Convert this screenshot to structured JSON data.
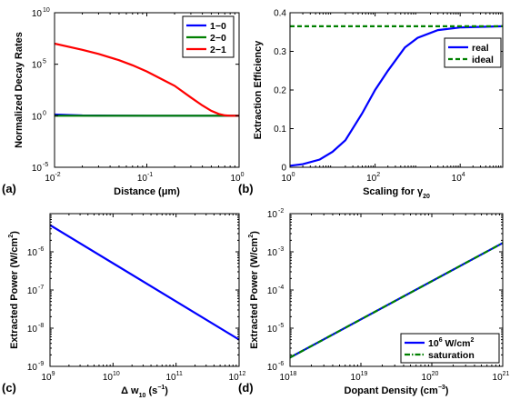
{
  "chart_data": [
    {
      "type": "line",
      "panel_label": "(a)",
      "xlabel": "Distance (μm)",
      "ylabel": "Normalized Decay Rates",
      "x_scale": "log",
      "y_scale": "log",
      "xlim": [
        0.01,
        1
      ],
      "ylim": [
        1e-05,
        10000000000
      ],
      "x_ticks": [
        {
          "value": 0.01,
          "base": "10",
          "exp": "-2"
        },
        {
          "value": 0.1,
          "base": "10",
          "exp": "-1"
        },
        {
          "value": 1,
          "base": "10",
          "exp": "0"
        }
      ],
      "y_ticks": [
        {
          "value": 1e-05,
          "base": "10",
          "exp": "-5"
        },
        {
          "value": 1,
          "base": "10",
          "exp": "0"
        },
        {
          "value": 100000,
          "base": "10",
          "exp": "5"
        },
        {
          "value": 10000000000,
          "base": "10",
          "exp": "10"
        }
      ],
      "legend_position": "top-right",
      "series": [
        {
          "name": "1−0",
          "color": "#0000ff",
          "x": [
            0.01,
            0.015,
            0.02,
            0.03,
            0.05,
            0.1,
            0.2,
            0.5,
            1
          ],
          "y": [
            1.3,
            1.15,
            1.08,
            1.04,
            1.02,
            1.01,
            1.0,
            1.0,
            1.0
          ]
        },
        {
          "name": "2−0",
          "color": "#008000",
          "x": [
            0.01,
            0.02,
            0.05,
            0.1,
            0.2,
            0.5,
            1
          ],
          "y": [
            1.0,
            1.0,
            1.0,
            1.0,
            1.0,
            1.0,
            1.0
          ]
        },
        {
          "name": "2−1",
          "color": "#ff0000",
          "x": [
            0.01,
            0.02,
            0.03,
            0.05,
            0.07,
            0.1,
            0.15,
            0.2,
            0.3,
            0.4,
            0.5,
            0.6,
            0.7,
            0.8,
            1
          ],
          "y": [
            10000000,
            2500000,
            1000000,
            250000,
            80000,
            20000,
            3000,
            800,
            60,
            10,
            3,
            1.5,
            1.1,
            1.0,
            1.0
          ]
        }
      ]
    },
    {
      "type": "line",
      "panel_label": "(b)",
      "xlabel": "Scaling for γ",
      "xlabel_sub": "20",
      "ylabel": "Extraction Efficiency",
      "x_scale": "log",
      "y_scale": "linear",
      "xlim": [
        1,
        100000
      ],
      "ylim": [
        0,
        0.4
      ],
      "x_ticks": [
        {
          "value": 1,
          "base": "10",
          "exp": "0"
        },
        {
          "value": 100,
          "base": "10",
          "exp": "2"
        },
        {
          "value": 10000,
          "base": "10",
          "exp": "4"
        }
      ],
      "y_ticks": [
        {
          "value": 0,
          "label": "0"
        },
        {
          "value": 0.1,
          "label": "0.1"
        },
        {
          "value": 0.2,
          "label": "0.2"
        },
        {
          "value": 0.3,
          "label": "0.3"
        },
        {
          "value": 0.4,
          "label": "0.4"
        }
      ],
      "legend_position": "right",
      "series": [
        {
          "name": "real",
          "color": "#0000ff",
          "dash": "",
          "x": [
            1,
            2,
            5,
            10,
            20,
            50,
            100,
            200,
            500,
            1000,
            3000,
            10000,
            100000
          ],
          "y": [
            0.004,
            0.008,
            0.02,
            0.04,
            0.07,
            0.14,
            0.2,
            0.25,
            0.31,
            0.335,
            0.355,
            0.362,
            0.365
          ]
        },
        {
          "name": "ideal",
          "color": "#008000",
          "dash": "5,3",
          "x": [
            1,
            100000
          ],
          "y": [
            0.365,
            0.365
          ]
        }
      ]
    },
    {
      "type": "line",
      "panel_label": "(c)",
      "xlabel": "Δ w",
      "xlabel_sub": "10",
      "xlabel_unit": " (s",
      "xlabel_unit_sup": "−1",
      "xlabel_unit_end": ")",
      "ylabel": "Extracted Power (W/cm",
      "ylabel_sup": "2",
      "ylabel_end": ")",
      "x_scale": "log",
      "y_scale": "log",
      "xlim": [
        1000000000,
        1000000000000
      ],
      "ylim": [
        1e-09,
        1e-05
      ],
      "x_ticks": [
        {
          "value": 1000000000,
          "base": "10",
          "exp": "9"
        },
        {
          "value": 10000000000,
          "base": "10",
          "exp": "10"
        },
        {
          "value": 100000000000,
          "base": "10",
          "exp": "11"
        },
        {
          "value": 1000000000000,
          "base": "10",
          "exp": "12"
        }
      ],
      "y_ticks": [
        {
          "value": 1e-09,
          "base": "10",
          "exp": "-9"
        },
        {
          "value": 1e-08,
          "base": "10",
          "exp": "-8"
        },
        {
          "value": 1e-07,
          "base": "10",
          "exp": "-7"
        },
        {
          "value": 1e-06,
          "base": "10",
          "exp": "-6"
        }
      ],
      "series": [
        {
          "color": "#0000ff",
          "dash": "",
          "x": [
            1000000000,
            1000000000000
          ],
          "y": [
            5e-06,
            5e-09
          ]
        }
      ]
    },
    {
      "type": "line",
      "panel_label": "(d)",
      "xlabel": "Dopant Density (cm",
      "xlabel_sup": "−3",
      "xlabel_end": ")",
      "ylabel": "Extracted Power (W/cm",
      "ylabel_sup": "2",
      "ylabel_end": ")",
      "x_scale": "log",
      "y_scale": "log",
      "xlim": [
        1000000000000000000,
        1000000000000000000000
      ],
      "ylim": [
        1e-06,
        0.01
      ],
      "x_ticks": [
        {
          "value": 1000000000000000000,
          "base": "10",
          "exp": "18"
        },
        {
          "value": 10000000000000000000,
          "base": "10",
          "exp": "19"
        },
        {
          "value": 100000000000000000000,
          "base": "10",
          "exp": "20"
        },
        {
          "value": 1000000000000000000000,
          "base": "10",
          "exp": "21"
        }
      ],
      "y_ticks": [
        {
          "value": 1e-06,
          "base": "10",
          "exp": "-6"
        },
        {
          "value": 1e-05,
          "base": "10",
          "exp": "-5"
        },
        {
          "value": 0.0001,
          "base": "10",
          "exp": "-4"
        },
        {
          "value": 0.001,
          "base": "10",
          "exp": "-3"
        },
        {
          "value": 0.01,
          "base": "10",
          "exp": "-2"
        }
      ],
      "legend_position": "bottom-right",
      "series": [
        {
          "name": "10",
          "name_sup": "6",
          "name_end": " W/cm",
          "name_sup2": "2",
          "color": "#0000ff",
          "dash": "",
          "x": [
            1000000000000000000,
            1000000000000000000000
          ],
          "y": [
            1.7e-06,
            0.0017
          ]
        },
        {
          "name": "saturation",
          "color": "#008000",
          "dash": "6,2,1.5,2",
          "x": [
            1000000000000000000,
            1000000000000000000000
          ],
          "y": [
            1.7e-06,
            0.0017
          ]
        }
      ]
    }
  ]
}
